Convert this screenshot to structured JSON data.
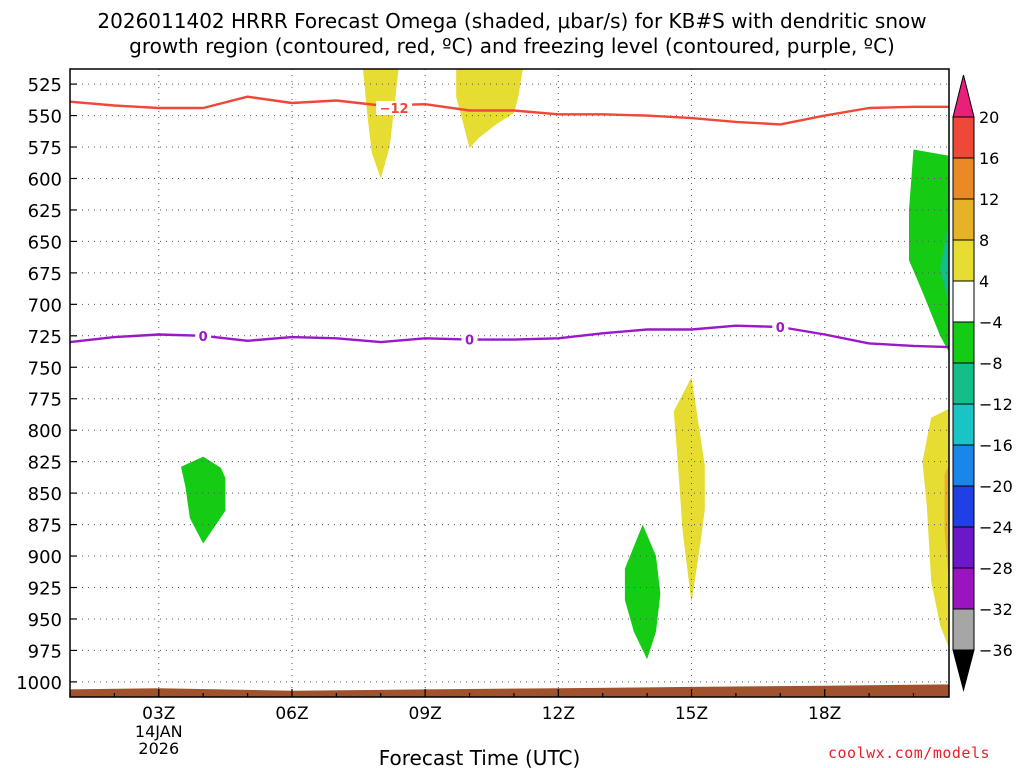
{
  "chart_data": {
    "type": "heatmap",
    "title_line1": "2026011402 HRRR Forecast Omega (shaded, μbar/s) for KB#S with dendritic snow",
    "title_line2": "growth region (contoured, red, ºC) and freezing level (contoured, purple, ºC)",
    "xlabel": "Forecast Time (UTC)",
    "date_label_day": "14JAN",
    "date_label_year": "2026",
    "x_range_hours": [
      1.0,
      20.8
    ],
    "y_range_hpa": [
      513,
      1012
    ],
    "x_ticks": [
      {
        "hour": 3,
        "label": "03Z"
      },
      {
        "hour": 6,
        "label": "06Z"
      },
      {
        "hour": 9,
        "label": "09Z"
      },
      {
        "hour": 12,
        "label": "12Z"
      },
      {
        "hour": 15,
        "label": "15Z"
      },
      {
        "hour": 18,
        "label": "18Z"
      }
    ],
    "y_ticks": [
      525,
      550,
      575,
      600,
      625,
      650,
      675,
      700,
      725,
      750,
      775,
      800,
      825,
      850,
      875,
      900,
      925,
      950,
      975,
      1000
    ],
    "y_tick_labels": [
      "525",
      "550",
      "575",
      "600",
      "625",
      "650",
      "675",
      "700",
      "725",
      "750",
      "775",
      "800",
      "825",
      "850",
      "875",
      "900",
      "925",
      "950",
      "975",
      "1000"
    ],
    "colorbar": {
      "bounds": [
        20,
        16,
        12,
        8,
        4,
        -4,
        -8,
        -12,
        -16,
        -20,
        -24,
        -28,
        -32,
        -36
      ],
      "labels": [
        "20",
        "16",
        "12",
        "8",
        "4",
        "−4",
        "−8",
        "−12",
        "−16",
        "−20",
        "−24",
        "−28",
        "−32",
        "−36"
      ],
      "top_arrow_color": "#e8207a",
      "bottom_arrow_color": "#000000",
      "segment_colors": [
        "#f04838",
        "#ea8a24",
        "#e6b228",
        "#e6dc32",
        "#ffffff",
        "#14cc14",
        "#14be8a",
        "#18c4c4",
        "#1a86ea",
        "#2040e6",
        "#6a18c8",
        "#9a14c0",
        "#a6a6a6"
      ]
    },
    "contours": [
      {
        "name": "dendritic-growth-minus12",
        "color": "#f04838",
        "label": "−12",
        "label_at": [
          8.3,
          544
        ],
        "points": [
          [
            1.0,
            539
          ],
          [
            2.0,
            542
          ],
          [
            3.0,
            544
          ],
          [
            4.0,
            544
          ],
          [
            5.0,
            535
          ],
          [
            6.0,
            540
          ],
          [
            7.0,
            538
          ],
          [
            8.0,
            542
          ],
          [
            9.0,
            541
          ],
          [
            10.0,
            546
          ],
          [
            11.0,
            546
          ],
          [
            12.0,
            549
          ],
          [
            13.0,
            549
          ],
          [
            14.0,
            550
          ],
          [
            15.0,
            552
          ],
          [
            16.0,
            555
          ],
          [
            17.0,
            557
          ],
          [
            18.0,
            550
          ],
          [
            19.0,
            544
          ],
          [
            20.0,
            543
          ],
          [
            20.8,
            543
          ]
        ]
      },
      {
        "name": "freezing-level-0",
        "color": "#9a18c8",
        "labels": [
          {
            "text": "0",
            "at": [
              4.0,
              725
            ]
          },
          {
            "text": "0",
            "at": [
              10.0,
              728
            ]
          },
          {
            "text": "0",
            "at": [
              17.0,
              718
            ]
          }
        ],
        "points": [
          [
            1.0,
            730
          ],
          [
            2.0,
            726
          ],
          [
            3.0,
            724
          ],
          [
            4.0,
            725
          ],
          [
            5.0,
            729
          ],
          [
            6.0,
            726
          ],
          [
            7.0,
            727
          ],
          [
            8.0,
            730
          ],
          [
            9.0,
            727
          ],
          [
            10.0,
            728
          ],
          [
            11.0,
            728
          ],
          [
            12.0,
            727
          ],
          [
            13.0,
            723
          ],
          [
            14.0,
            720
          ],
          [
            15.0,
            720
          ],
          [
            16.0,
            717
          ],
          [
            17.0,
            718
          ],
          [
            18.0,
            724
          ],
          [
            19.0,
            731
          ],
          [
            20.0,
            733
          ],
          [
            20.8,
            734
          ]
        ]
      }
    ],
    "terrain": {
      "color": "#a0522d",
      "points": [
        [
          1.0,
          1006
        ],
        [
          3.0,
          1005
        ],
        [
          6.0,
          1007
        ],
        [
          9.0,
          1006
        ],
        [
          12.0,
          1005
        ],
        [
          15.0,
          1004
        ],
        [
          18.0,
          1003
        ],
        [
          20.8,
          1002
        ]
      ]
    },
    "omega_regions": [
      {
        "name": "omega-plus4-0800z",
        "value_range": [
          4,
          8
        ],
        "color": "#e6dc32",
        "points": [
          [
            7.6,
            513
          ],
          [
            8.4,
            513
          ],
          [
            8.3,
            545
          ],
          [
            8.2,
            575
          ],
          [
            8.0,
            600
          ],
          [
            7.8,
            580
          ],
          [
            7.7,
            550
          ]
        ]
      },
      {
        "name": "omega-plus4-1000z",
        "value_range": [
          4,
          8
        ],
        "color": "#e6dc32",
        "points": [
          [
            9.7,
            513
          ],
          [
            11.2,
            513
          ],
          [
            11.1,
            535
          ],
          [
            11.0,
            548
          ],
          [
            10.6,
            557
          ],
          [
            10.2,
            568
          ],
          [
            10.0,
            576
          ],
          [
            9.9,
            562
          ],
          [
            9.7,
            535
          ]
        ]
      },
      {
        "name": "omega-minus4-0400z",
        "value_range": [
          -8,
          -4
        ],
        "color": "#14cc14",
        "points": [
          [
            3.5,
            829
          ],
          [
            4.0,
            821
          ],
          [
            4.4,
            830
          ],
          [
            4.5,
            838
          ],
          [
            4.5,
            864
          ],
          [
            4.0,
            890
          ],
          [
            3.7,
            870
          ],
          [
            3.6,
            845
          ]
        ]
      },
      {
        "name": "omega-plus4-1500z",
        "value_range": [
          4,
          8
        ],
        "color": "#e6dc32",
        "points": [
          [
            14.6,
            785
          ],
          [
            15.0,
            758
          ],
          [
            15.3,
            828
          ],
          [
            15.3,
            863
          ],
          [
            15.2,
            890
          ],
          [
            15.0,
            937
          ],
          [
            14.8,
            880
          ],
          [
            14.7,
            830
          ]
        ]
      },
      {
        "name": "omega-minus4-1400z",
        "value_range": [
          -8,
          -4
        ],
        "color": "#14cc14",
        "points": [
          [
            13.5,
            910
          ],
          [
            13.9,
            875
          ],
          [
            14.2,
            900
          ],
          [
            14.3,
            930
          ],
          [
            14.2,
            960
          ],
          [
            14.0,
            982
          ],
          [
            13.7,
            960
          ],
          [
            13.5,
            935
          ]
        ]
      },
      {
        "name": "omega-minus4-2000z",
        "value_range": [
          -8,
          -4
        ],
        "color": "#14cc14",
        "points": [
          [
            20.0,
            577
          ],
          [
            20.8,
            582
          ],
          [
            20.8,
            738
          ],
          [
            20.6,
            725
          ],
          [
            20.2,
            690
          ],
          [
            19.9,
            665
          ],
          [
            19.9,
            625
          ]
        ]
      },
      {
        "name": "omega-minus8-2000z",
        "value_range": [
          -12,
          -8
        ],
        "color": "#14be8a",
        "points": [
          [
            20.8,
            633
          ],
          [
            20.8,
            700
          ],
          [
            20.6,
            672
          ]
        ]
      },
      {
        "name": "omega-plus4-2000z",
        "value_range": [
          4,
          8
        ],
        "color": "#e6dc32",
        "points": [
          [
            20.4,
            790
          ],
          [
            20.8,
            783
          ],
          [
            20.8,
            973
          ],
          [
            20.6,
            955
          ],
          [
            20.4,
            920
          ],
          [
            20.3,
            860
          ],
          [
            20.2,
            825
          ]
        ]
      },
      {
        "name": "omega-plus8-2000z",
        "value_range": [
          8,
          12
        ],
        "color": "#e6b228",
        "points": [
          [
            20.7,
            835
          ],
          [
            20.8,
            828
          ],
          [
            20.8,
            920
          ],
          [
            20.7,
            880
          ]
        ]
      }
    ]
  },
  "credit": "coolwx.com/models"
}
